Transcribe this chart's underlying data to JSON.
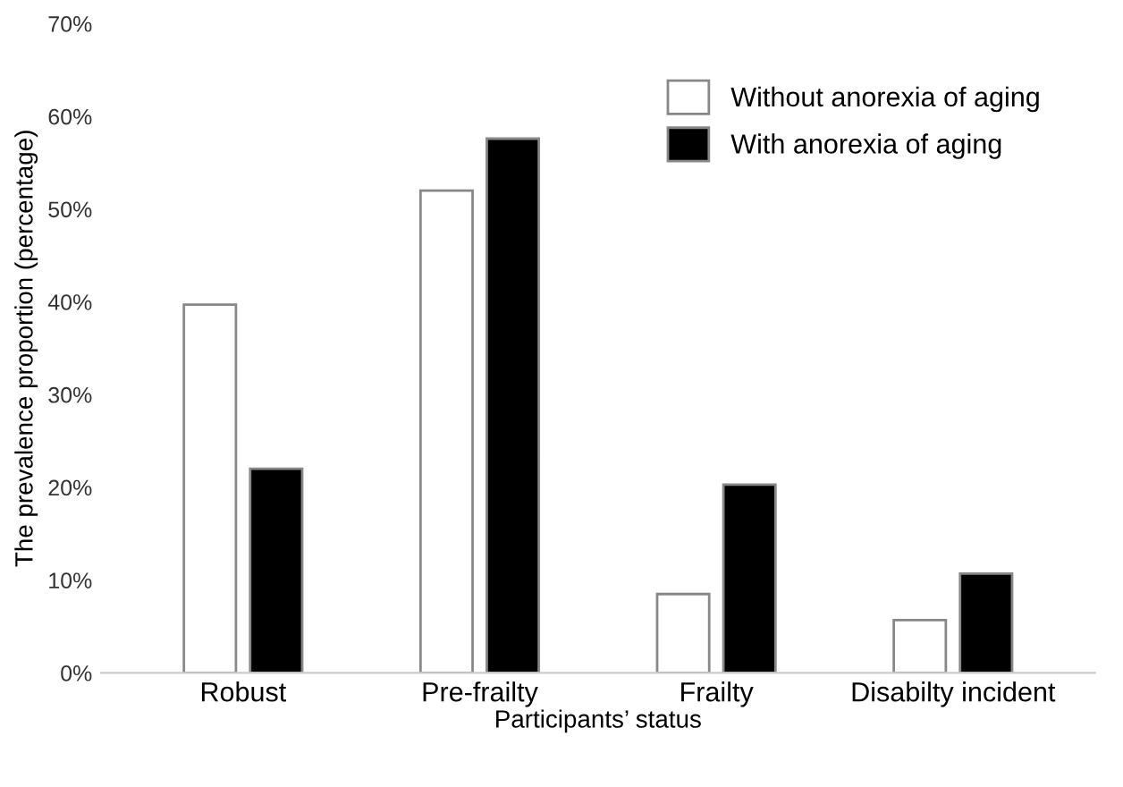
{
  "chart_data": {
    "type": "bar",
    "xlabel": "Participants’ status",
    "ylabel": "The prevalence proportion (percentage)",
    "categories": [
      "Robust",
      "Pre-frailty",
      "Frailty",
      "Disabilty incident"
    ],
    "series": [
      {
        "name": "Without anorexia of aging",
        "color": "#ffffff",
        "values": [
          39.7,
          52.0,
          8.5,
          5.7
        ]
      },
      {
        "name": "With anorexia of aging",
        "color": "#000000",
        "values": [
          22.0,
          57.6,
          20.3,
          10.7
        ]
      }
    ],
    "ylim": [
      0,
      70
    ],
    "yticks": [
      {
        "value": 0,
        "label": "0%"
      },
      {
        "value": 10,
        "label": "10%"
      },
      {
        "value": 20,
        "label": "20%"
      },
      {
        "value": 30,
        "label": "30%"
      },
      {
        "value": 40,
        "label": "40%"
      },
      {
        "value": 50,
        "label": "50%"
      },
      {
        "value": 60,
        "label": "60%"
      },
      {
        "value": 70,
        "label": "70%"
      }
    ],
    "grid": false,
    "legend": "top right"
  }
}
